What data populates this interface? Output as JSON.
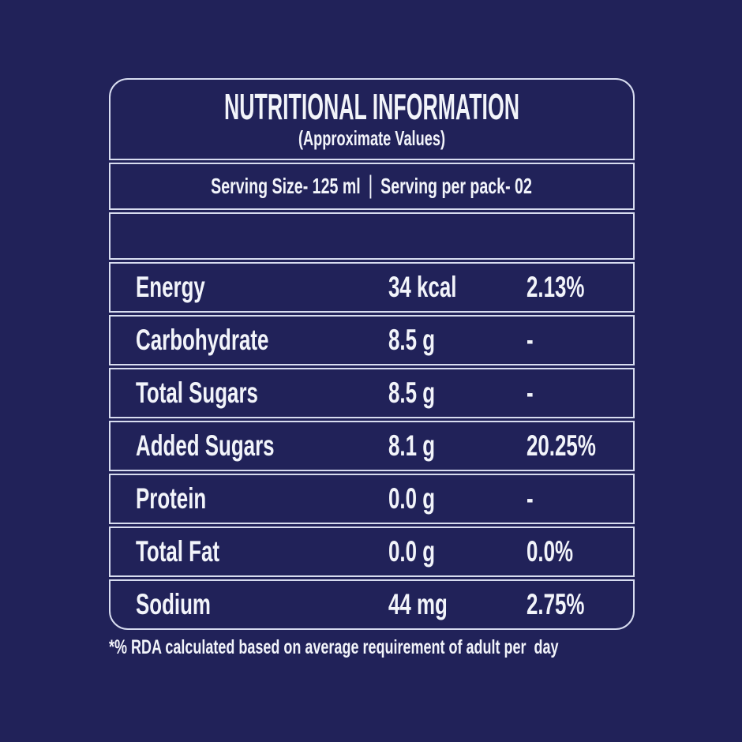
{
  "label": {
    "title": "NUTRITIONAL INFORMATION",
    "subtitle": "(Approximate Values)",
    "serving": {
      "size": "Serving Size- 125 ml",
      "separator": "|",
      "per_pack": "Serving per pack- 02"
    },
    "rows": [
      {
        "nutrient": "Energy",
        "amount": "34 kcal",
        "rda": "2.13%"
      },
      {
        "nutrient": "Carbohydrate",
        "amount": "8.5 g",
        "rda": "-"
      },
      {
        "nutrient": "Total Sugars",
        "amount": "8.5 g",
        "rda": "-"
      },
      {
        "nutrient": "Added Sugars",
        "amount": "8.1 g",
        "rda": "20.25%"
      },
      {
        "nutrient": "Protein",
        "amount": "0.0 g",
        "rda": "-"
      },
      {
        "nutrient": "Total Fat",
        "amount": "0.0 g",
        "rda": "0.0%"
      },
      {
        "nutrient": "Sodium",
        "amount": "44 mg",
        "rda": "2.75%"
      }
    ],
    "footnote": "*% RDA calculated based on average requirement of adult per  day",
    "colors": {
      "background": "#212259",
      "border": "#d8ddf0",
      "text": "#f2f4fa"
    }
  }
}
